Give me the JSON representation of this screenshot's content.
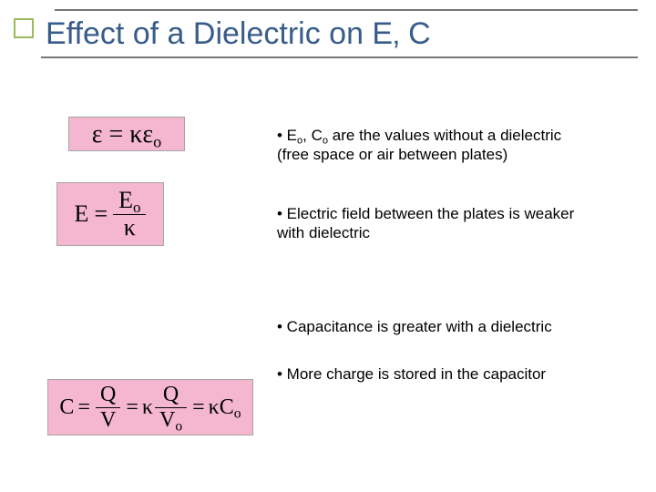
{
  "colors": {
    "title_box_border": "#9bbb59",
    "title_text": "#385d8a",
    "rule": "#777777",
    "eq_border": "#a6a6a6",
    "eq_bg_pink": "#f4b7cf",
    "body_text": "#000000"
  },
  "title": "Effect of a Dielectric on E‚ C",
  "equations": {
    "eq1_html": "&epsilon; = &kappa;&epsilon;<sub>o</sub>",
    "eq2_lhs": "E",
    "eq2_num": "E<sub>o</sub>",
    "eq2_den": "&kappa;",
    "eq3_lhs": "C",
    "eq3_f1_num": "Q",
    "eq3_f1_den": "V",
    "eq3_mid": "&kappa;",
    "eq3_f2_num": "Q",
    "eq3_f2_den": "V<sub>o</sub>",
    "eq3_rhs": "&kappa;C<sub>o</sub>"
  },
  "bullets": {
    "b1_html": "• E<sub>o</sub>, C<sub>o</sub> are the values without a dielectric (free space or air between plates)",
    "b2": "• Electric field between the plates is weaker with dielectric",
    "b3": "• Capacitance is greater with a dielectric",
    "b4": "• More charge is stored in the capacitor"
  }
}
